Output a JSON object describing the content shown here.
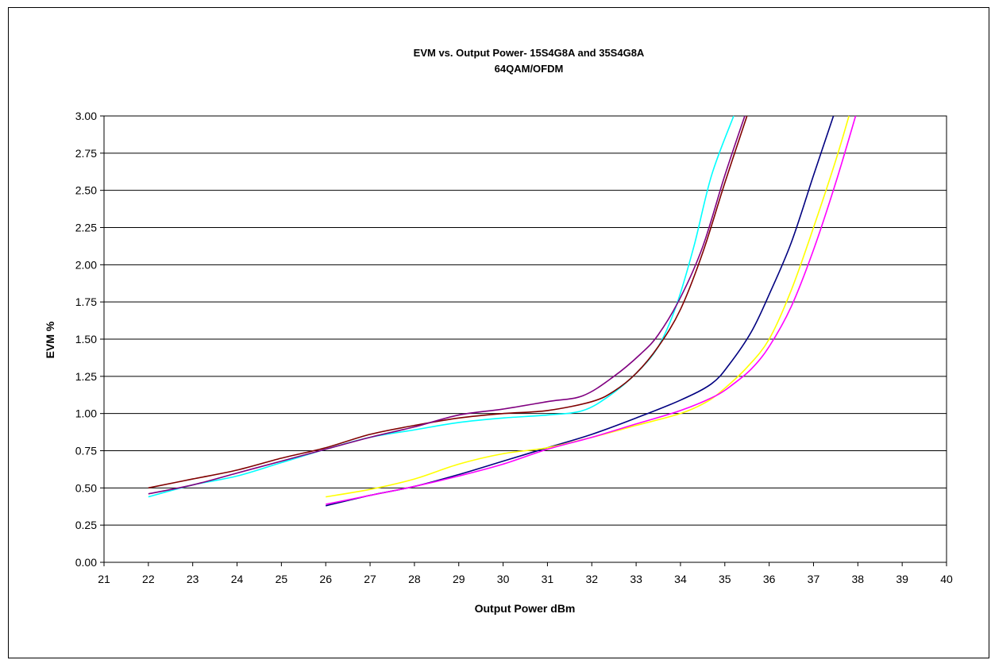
{
  "chart_data": {
    "type": "line",
    "title": [
      "EVM vs. Output Power- 15S4G8A and 35S4G8A",
      "64QAM/OFDM"
    ],
    "xlabel": "Output Power dBm",
    "ylabel": "EVM %",
    "xlim": [
      21,
      40
    ],
    "ylim": [
      0,
      3
    ],
    "x_ticks": [
      "21",
      "22",
      "23",
      "24",
      "25",
      "26",
      "27",
      "28",
      "29",
      "30",
      "31",
      "32",
      "33",
      "34",
      "35",
      "36",
      "37",
      "38",
      "39",
      "40"
    ],
    "y_ticks": [
      "0.00",
      "0.25",
      "0.50",
      "0.75",
      "1.00",
      "1.25",
      "1.50",
      "1.75",
      "2.00",
      "2.25",
      "2.50",
      "2.75",
      "3.00"
    ],
    "grid": "horizontal",
    "legend": "none",
    "series": [
      {
        "color": "#00ffff",
        "points": [
          [
            22,
            0.44
          ],
          [
            23,
            0.52
          ],
          [
            24,
            0.58
          ],
          [
            25,
            0.67
          ],
          [
            26,
            0.76
          ],
          [
            27,
            0.84
          ],
          [
            28,
            0.89
          ],
          [
            29,
            0.94
          ],
          [
            30,
            0.97
          ],
          [
            31,
            0.99
          ],
          [
            31.8,
            1.02
          ],
          [
            32.4,
            1.12
          ],
          [
            33,
            1.27
          ],
          [
            33.5,
            1.45
          ],
          [
            33.9,
            1.72
          ],
          [
            34.3,
            2.12
          ],
          [
            34.7,
            2.6
          ],
          [
            35.2,
            3.0
          ]
        ]
      },
      {
        "color": "#800000",
        "points": [
          [
            22,
            0.5
          ],
          [
            23,
            0.56
          ],
          [
            24,
            0.62
          ],
          [
            25,
            0.7
          ],
          [
            26,
            0.77
          ],
          [
            27,
            0.86
          ],
          [
            28,
            0.92
          ],
          [
            29,
            0.97
          ],
          [
            30,
            1.0
          ],
          [
            31,
            1.02
          ],
          [
            32,
            1.08
          ],
          [
            32.5,
            1.15
          ],
          [
            33,
            1.27
          ],
          [
            33.5,
            1.45
          ],
          [
            34,
            1.7
          ],
          [
            34.5,
            2.08
          ],
          [
            35,
            2.55
          ],
          [
            35.5,
            3.0
          ]
        ]
      },
      {
        "color": "#800080",
        "points": [
          [
            22,
            0.46
          ],
          [
            23,
            0.52
          ],
          [
            24,
            0.6
          ],
          [
            25,
            0.68
          ],
          [
            26,
            0.76
          ],
          [
            27,
            0.84
          ],
          [
            28,
            0.91
          ],
          [
            29,
            0.99
          ],
          [
            30,
            1.03
          ],
          [
            31,
            1.08
          ],
          [
            31.8,
            1.12
          ],
          [
            32.5,
            1.25
          ],
          [
            33.1,
            1.4
          ],
          [
            33.5,
            1.53
          ],
          [
            34,
            1.78
          ],
          [
            34.5,
            2.12
          ],
          [
            35,
            2.6
          ],
          [
            35.45,
            3.0
          ]
        ]
      },
      {
        "color": "#000080",
        "points": [
          [
            26,
            0.38
          ],
          [
            27,
            0.45
          ],
          [
            28,
            0.51
          ],
          [
            29,
            0.59
          ],
          [
            30,
            0.68
          ],
          [
            31,
            0.77
          ],
          [
            32,
            0.86
          ],
          [
            33,
            0.97
          ],
          [
            34,
            1.09
          ],
          [
            34.7,
            1.2
          ],
          [
            35.1,
            1.33
          ],
          [
            35.6,
            1.55
          ],
          [
            36,
            1.8
          ],
          [
            36.5,
            2.15
          ],
          [
            37,
            2.6
          ],
          [
            37.45,
            3.0
          ]
        ]
      },
      {
        "color": "#ffff00",
        "points": [
          [
            26,
            0.44
          ],
          [
            27,
            0.49
          ],
          [
            28,
            0.56
          ],
          [
            29,
            0.66
          ],
          [
            30,
            0.73
          ],
          [
            31,
            0.77
          ],
          [
            32,
            0.84
          ],
          [
            33,
            0.92
          ],
          [
            34,
            1.0
          ],
          [
            34.6,
            1.08
          ],
          [
            35,
            1.17
          ],
          [
            35.5,
            1.31
          ],
          [
            36,
            1.5
          ],
          [
            36.5,
            1.83
          ],
          [
            37,
            2.25
          ],
          [
            37.5,
            2.7
          ],
          [
            37.8,
            3.0
          ]
        ]
      },
      {
        "color": "#ff00ff",
        "points": [
          [
            26,
            0.39
          ],
          [
            27,
            0.45
          ],
          [
            28,
            0.51
          ],
          [
            29,
            0.58
          ],
          [
            30,
            0.66
          ],
          [
            31,
            0.76
          ],
          [
            32,
            0.84
          ],
          [
            33,
            0.93
          ],
          [
            34,
            1.02
          ],
          [
            34.8,
            1.12
          ],
          [
            35.2,
            1.2
          ],
          [
            35.6,
            1.3
          ],
          [
            36,
            1.45
          ],
          [
            36.5,
            1.72
          ],
          [
            37,
            2.1
          ],
          [
            37.5,
            2.55
          ],
          [
            37.95,
            3.0
          ]
        ]
      }
    ]
  }
}
